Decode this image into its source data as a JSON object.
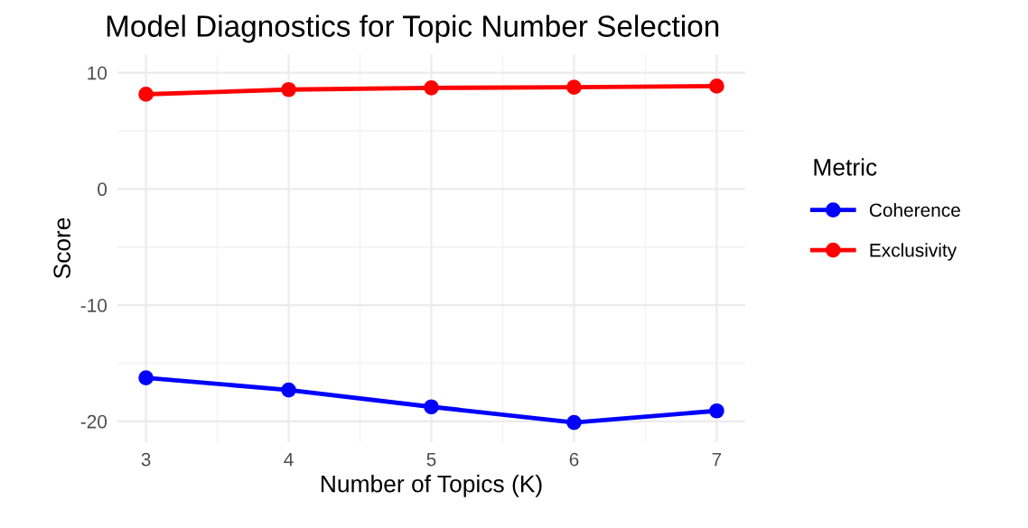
{
  "chart_data": {
    "type": "line",
    "title": "Model Diagnostics for Topic Number Selection",
    "xlabel": "Number of Topics (K)",
    "ylabel": "Score",
    "legend_title": "Metric",
    "x": [
      3,
      4,
      5,
      6,
      7
    ],
    "series": [
      {
        "name": "Coherence",
        "color": "#0000ff",
        "values": [
          -16.25,
          -17.3,
          -18.75,
          -20.1,
          -19.1
        ]
      },
      {
        "name": "Exclusivity",
        "color": "#ff0000",
        "values": [
          8.15,
          8.55,
          8.7,
          8.75,
          8.85
        ]
      }
    ],
    "xlim": [
      2.8,
      7.2
    ],
    "xticks": [
      3,
      4,
      5,
      6,
      7
    ],
    "ylim": [
      -21.8,
      11.6
    ],
    "yticks": [
      -20,
      -10,
      0,
      10
    ],
    "grid": true,
    "legend": "right",
    "marker": "circle",
    "line_style": "solid"
  }
}
